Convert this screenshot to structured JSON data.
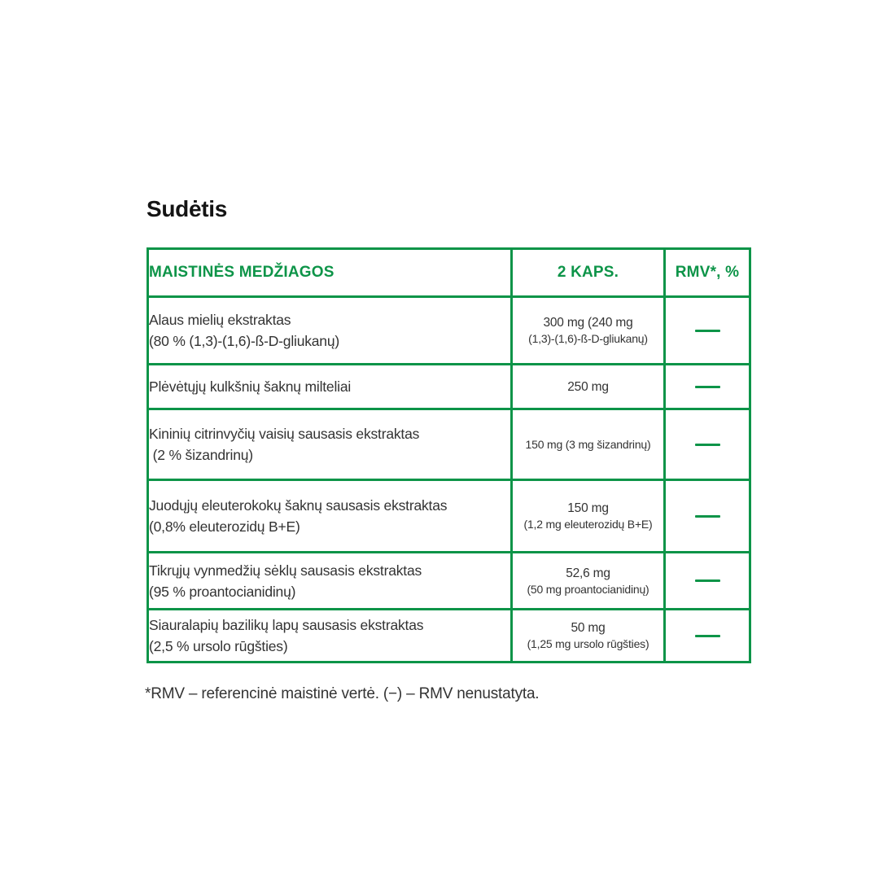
{
  "page": {
    "title": "Sudėtis",
    "footnote": "*RMV – referencinė maistinė vertė. (−) – RMV nenustatyta."
  },
  "colors": {
    "accent_green": "#0D9448",
    "body_text": "#333333"
  },
  "table": {
    "headers": {
      "col1": "MAISTINĖS MEDŽIAGOS",
      "col2": "2 KAPS.",
      "col3": "RMV*, %"
    },
    "rows": [
      {
        "name_line1": "Alaus mielių ekstraktas",
        "name_line2": "(80 % (1,3)-(1,6)-ß-D-gliukanų)",
        "amount_line1": "300 mg (240 mg",
        "amount_line2": "(1,3)-(1,6)-ß-D-gliukanų)",
        "rmv": "—"
      },
      {
        "name_line1": "Plėvėtųjų kulkšnių šaknų milteliai",
        "amount_line1": "250 mg",
        "rmv": "—"
      },
      {
        "name_line1": "Kininių citrinvyčių vaisių sausasis ekstraktas",
        "name_line2": " (2 % šizandrinų)",
        "amount_line1": "150 mg (3 mg šizandrinų)",
        "rmv": "—"
      },
      {
        "name_line1": "Juodųjų eleuterokokų šaknų sausasis ekstraktas",
        "name_line2": "(0,8% eleuterozidų B+E)",
        "amount_line1": "150 mg",
        "amount_line2": "(1,2 mg eleuterozidų B+E)",
        "rmv": "—"
      },
      {
        "name_line1": "Tikrųjų vynmedžių sėklų sausasis ekstraktas",
        "name_line2": "(95 % proantocianidinų)",
        "amount_line1": "52,6 mg",
        "amount_line2": "(50 mg proantocianidinų)",
        "rmv": "—"
      },
      {
        "name_line1": "Siauralapių bazilikų lapų sausasis ekstraktas",
        "name_line2": "(2,5 % ursolo rūgšties)",
        "amount_line1": "50 mg",
        "amount_line2": "(1,25 mg ursolo rūgšties)",
        "rmv": "—"
      }
    ]
  }
}
